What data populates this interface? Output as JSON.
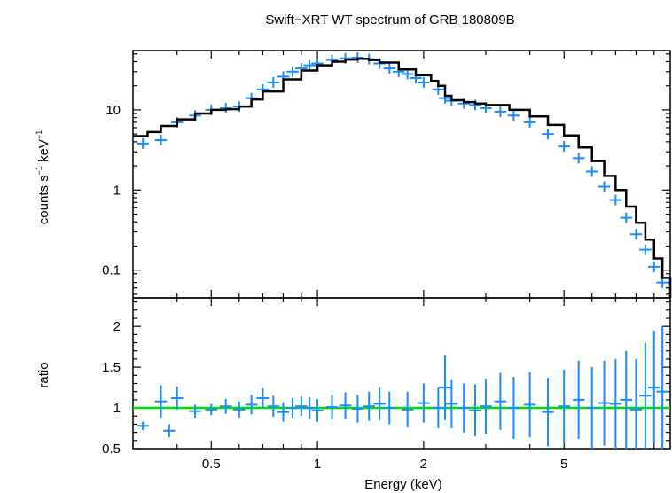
{
  "chart_data": [
    {
      "type": "scatter",
      "panel": "spectrum",
      "title": "Swift−XRT WT spectrum of GRB 180809B",
      "xlabel": "Energy (keV)",
      "ylabel_base": "counts s",
      "ylabel_sup1": "−1",
      "ylabel_mid": " keV",
      "ylabel_sup2": "−1",
      "xscale": "log",
      "yscale": "log",
      "xlim": [
        0.3,
        10.0
      ],
      "ylim": [
        0.045,
        55
      ],
      "y_ticks": [
        0.1,
        1,
        10
      ],
      "y_tick_labels": [
        "0.1",
        "1",
        "10"
      ],
      "grid": false,
      "series": [
        {
          "role": "data",
          "color": "#1a8cff",
          "x": [
            0.32,
            0.36,
            0.4,
            0.45,
            0.5,
            0.55,
            0.6,
            0.65,
            0.7,
            0.75,
            0.8,
            0.85,
            0.9,
            0.95,
            1.0,
            1.1,
            1.2,
            1.3,
            1.4,
            1.5,
            1.6,
            1.7,
            1.8,
            1.9,
            2.0,
            2.2,
            2.3,
            2.4,
            2.6,
            2.8,
            3.0,
            3.3,
            3.6,
            4.0,
            4.5,
            5.0,
            5.5,
            6.0,
            6.5,
            7.0,
            7.5,
            8.0,
            8.5,
            9.0,
            9.5
          ],
          "y": [
            3.8,
            4.2,
            7.0,
            8.5,
            10.0,
            10.5,
            11.0,
            14.0,
            18.0,
            22.0,
            26.0,
            30.0,
            33.0,
            36.0,
            38.0,
            42.0,
            44.0,
            45.0,
            43.0,
            38.0,
            33.0,
            30.0,
            28.0,
            25.0,
            22.0,
            18.0,
            14.0,
            13.0,
            12.0,
            11.5,
            10.5,
            9.5,
            8.5,
            7.0,
            5.0,
            3.5,
            2.5,
            1.7,
            1.1,
            0.75,
            0.45,
            0.28,
            0.18,
            0.11,
            0.07
          ]
        },
        {
          "role": "model",
          "color": "#000000",
          "x": [
            0.3,
            0.33,
            0.36,
            0.4,
            0.45,
            0.5,
            0.55,
            0.6,
            0.65,
            0.7,
            0.8,
            0.9,
            1.0,
            1.1,
            1.2,
            1.3,
            1.4,
            1.5,
            1.7,
            1.9,
            2.1,
            2.2,
            2.3,
            2.4,
            2.6,
            2.8,
            3.0,
            3.5,
            4.0,
            4.5,
            5.0,
            5.5,
            6.0,
            6.5,
            7.0,
            7.5,
            8.0,
            8.5,
            9.0,
            9.5,
            10.0
          ],
          "y": [
            4.7,
            5.3,
            6.3,
            7.6,
            9.0,
            10.0,
            10.2,
            11.0,
            13.5,
            17.0,
            24.0,
            31.0,
            36.0,
            40.0,
            42.5,
            43.5,
            42.0,
            39.0,
            32.0,
            27.0,
            23.0,
            20.0,
            15.0,
            13.2,
            12.5,
            12.0,
            11.5,
            10.0,
            8.3,
            6.5,
            4.8,
            3.4,
            2.3,
            1.5,
            1.0,
            0.62,
            0.39,
            0.24,
            0.14,
            0.08,
            0.045
          ]
        }
      ]
    },
    {
      "type": "scatter",
      "panel": "ratio",
      "xlabel": "Energy (keV)",
      "ylabel": "ratio",
      "xscale": "log",
      "yscale": "linear",
      "xlim": [
        0.3,
        10.0
      ],
      "ylim": [
        0.5,
        2.35
      ],
      "y_ticks": [
        0.5,
        1,
        1.5,
        2
      ],
      "y_tick_labels": [
        "0.5",
        "1",
        "1.5",
        "2"
      ],
      "x_ticks": [
        0.5,
        1,
        2,
        5
      ],
      "x_tick_labels": [
        "0.5",
        "1",
        "2",
        "5"
      ],
      "grid": false,
      "reference_line": {
        "y": 1.0,
        "color": "#00e000"
      },
      "series": [
        {
          "role": "ratio",
          "color": "#1a8cff",
          "x": [
            0.32,
            0.36,
            0.38,
            0.4,
            0.45,
            0.5,
            0.55,
            0.6,
            0.65,
            0.7,
            0.75,
            0.8,
            0.85,
            0.9,
            0.95,
            1.0,
            1.1,
            1.2,
            1.3,
            1.4,
            1.5,
            1.6,
            1.8,
            2.0,
            2.2,
            2.3,
            2.4,
            2.6,
            2.8,
            3.0,
            3.3,
            3.6,
            4.0,
            4.5,
            5.0,
            5.5,
            6.0,
            6.5,
            7.0,
            7.5,
            8.0,
            8.5,
            9.0,
            9.5
          ],
          "y": [
            0.78,
            1.08,
            0.72,
            1.12,
            0.96,
            0.98,
            1.02,
            0.98,
            1.04,
            1.12,
            1.02,
            0.95,
            1.0,
            1.02,
            1.0,
            0.97,
            1.01,
            1.03,
            0.99,
            1.02,
            1.05,
            1.0,
            0.98,
            1.06,
            1.0,
            1.25,
            1.05,
            1.0,
            0.97,
            1.02,
            1.08,
            1.0,
            1.04,
            0.95,
            1.02,
            1.1,
            1.0,
            1.06,
            1.05,
            1.1,
            0.98,
            1.15,
            1.25,
            1.2
          ],
          "yerr": [
            0.05,
            0.2,
            0.08,
            0.14,
            0.08,
            0.07,
            0.09,
            0.1,
            0.12,
            0.12,
            0.13,
            0.12,
            0.12,
            0.12,
            0.13,
            0.14,
            0.15,
            0.16,
            0.17,
            0.18,
            0.2,
            0.2,
            0.22,
            0.24,
            0.25,
            0.4,
            0.3,
            0.3,
            0.32,
            0.34,
            0.35,
            0.38,
            0.4,
            0.42,
            0.45,
            0.48,
            0.5,
            0.52,
            0.55,
            0.6,
            0.62,
            0.65,
            0.7,
            0.8
          ]
        }
      ]
    }
  ]
}
